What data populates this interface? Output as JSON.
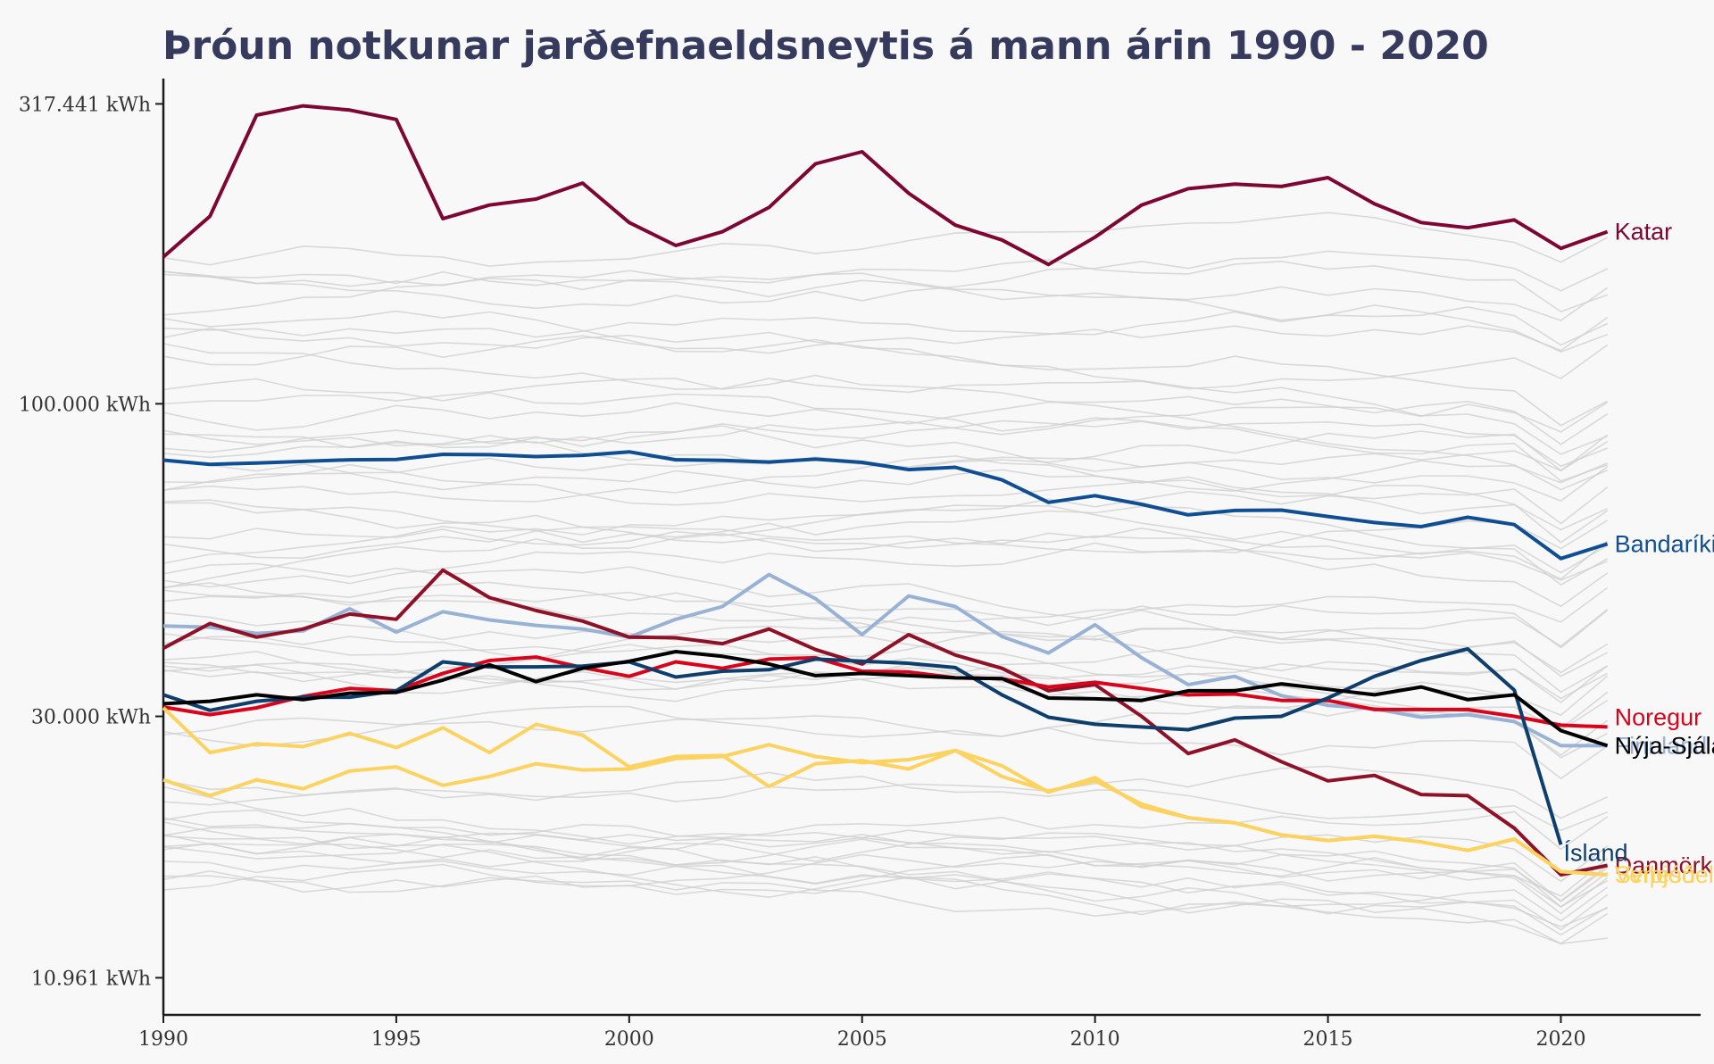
{
  "chart_data": {
    "type": "line",
    "title": "Þróun notkunar jarðefnaeldsneytis á mann árin 1990 - 2020",
    "xlabel": "",
    "ylabel": "",
    "y_scale": "log",
    "grid": false,
    "xlim": [
      1990,
      2023
    ],
    "ylim": [
      9500,
      350000
    ],
    "x_ticks": [
      1990,
      1995,
      2000,
      2005,
      2010,
      2015,
      2020
    ],
    "x_tick_labels": [
      "1990",
      "1995",
      "2000",
      "2005",
      "2010",
      "2015",
      "2020"
    ],
    "y_ticks": [
      10961,
      30000,
      100000,
      317441
    ],
    "y_tick_labels": [
      "10.961 kWh",
      "30.000 kWh",
      "100.000 kWh",
      "317.441 kWh"
    ],
    "x": [
      1990,
      1991,
      1992,
      1993,
      1994,
      1995,
      1996,
      1997,
      1998,
      1999,
      2000,
      2001,
      2002,
      2003,
      2004,
      2005,
      2006,
      2007,
      2008,
      2009,
      2010,
      2011,
      2012,
      2013,
      2014,
      2015,
      2016,
      2017,
      2018,
      2019,
      2020,
      2021
    ],
    "series": [
      {
        "name": "Katar",
        "label": "Katar",
        "color": "#7d0633",
        "values": [
          176000,
          206000,
          304000,
          315000,
          310000,
          299000,
          204000,
          215000,
          220000,
          234000,
          201000,
          184000,
          194000,
          213000,
          252000,
          264000,
          225000,
          199000,
          188000,
          171000,
          190000,
          215000,
          229000,
          233000,
          231000,
          239000,
          216000,
          201000,
          197000,
          203000,
          182000,
          194000
        ]
      },
      {
        "name": "Bandaríkin",
        "label": "Bandaríkin",
        "color": "#0f4e93",
        "values": [
          80500,
          79200,
          79600,
          80100,
          80600,
          80700,
          82300,
          82200,
          81600,
          82000,
          83100,
          80600,
          80400,
          79900,
          80800,
          79800,
          77600,
          78300,
          74600,
          68400,
          70200,
          67900,
          65200,
          66300,
          66400,
          64800,
          63300,
          62300,
          64600,
          62800,
          55100,
          58300
        ]
      },
      {
        "name": "Finnland",
        "label": "Finnland",
        "color": "#98b2d6",
        "values": [
          42500,
          42300,
          41300,
          41700,
          45400,
          41500,
          44900,
          43500,
          42600,
          42000,
          40700,
          43600,
          45800,
          51800,
          47200,
          41100,
          47700,
          45800,
          40800,
          38300,
          42700,
          37600,
          33900,
          35000,
          32500,
          31300,
          30900,
          29900,
          30200,
          29400,
          26800,
          26800
        ]
      },
      {
        "name": "Danmörk",
        "label": "Danmörk",
        "color": "#8e1128",
        "values": [
          39000,
          42900,
          40700,
          42000,
          44500,
          43600,
          52700,
          47400,
          45100,
          43300,
          40700,
          40600,
          39700,
          42000,
          38800,
          36700,
          41100,
          38000,
          36100,
          33100,
          33900,
          30000,
          26000,
          27400,
          25200,
          23400,
          23900,
          22200,
          22100,
          19500,
          16300,
          16900
        ]
      },
      {
        "name": "Noregur",
        "label": "Noregur",
        "color": "#d9041c",
        "values": [
          31100,
          30200,
          31000,
          32400,
          33400,
          33100,
          35400,
          37200,
          37700,
          36200,
          35000,
          37000,
          36100,
          37400,
          37600,
          35700,
          35600,
          34800,
          34700,
          33600,
          34200,
          33400,
          32600,
          32700,
          31900,
          31900,
          30800,
          30800,
          30800,
          30000,
          29000,
          28800
        ]
      },
      {
        "name": "Ísland",
        "label": "Ísland",
        "color": "#0d3e6c",
        "values": [
          32600,
          30700,
          31800,
          32300,
          32300,
          33100,
          37000,
          36300,
          36300,
          36400,
          37000,
          34900,
          35700,
          35900,
          37400,
          37100,
          36800,
          36200,
          32600,
          29900,
          29100,
          28800,
          28500,
          29800,
          30000,
          32200,
          35000,
          37200,
          38900,
          33200,
          18300,
          null
        ]
      },
      {
        "name": "Nýja-Sjáland",
        "label": "Nýja-Sjáland",
        "color": "#000000",
        "values": [
          31500,
          31800,
          32600,
          32000,
          32800,
          32900,
          34500,
          36600,
          34300,
          36100,
          37100,
          38500,
          37800,
          36700,
          35100,
          35400,
          35100,
          34800,
          34700,
          32200,
          32100,
          31900,
          33100,
          33100,
          34000,
          33300,
          32600,
          33600,
          32000,
          32600,
          28400,
          26800
        ]
      },
      {
        "name": "Svíþjóð",
        "label": "Svíþjóð",
        "color": "#fcd360",
        "values": [
          23500,
          22100,
          23500,
          22700,
          24300,
          24700,
          23000,
          23800,
          25000,
          24400,
          24500,
          25500,
          25700,
          26900,
          25700,
          25100,
          25400,
          26300,
          24800,
          22400,
          23700,
          21200,
          20300,
          19900,
          19000,
          18600,
          18900,
          18500,
          17900,
          18700,
          16500,
          16300
        ]
      },
      {
        "name": "Venesúela",
        "label": "Venesúela",
        "color": "#fcd360",
        "values": [
          31000,
          26100,
          27000,
          26700,
          28100,
          26600,
          28700,
          26100,
          29100,
          27900,
          24700,
          25700,
          25800,
          22900,
          25000,
          25300,
          24500,
          26300,
          23800,
          22500,
          23400,
          21400,
          20300,
          19900,
          19000,
          18600,
          18900,
          18500,
          17900,
          18700,
          16500,
          16300
        ]
      }
    ]
  }
}
